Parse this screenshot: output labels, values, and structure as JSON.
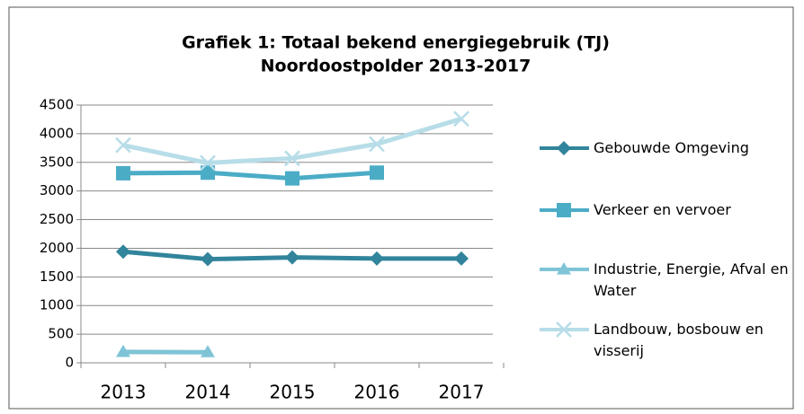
{
  "chart_data": {
    "type": "line",
    "title": [
      "Grafiek 1: Totaal bekend energiegebruik (TJ)",
      "Noordoostpolder 2013-2017"
    ],
    "categories": [
      "2013",
      "2014",
      "2015",
      "2016",
      "2017"
    ],
    "series": [
      {
        "name": "Gebouwde Omgeving",
        "color": "#31849b",
        "marker": "diamond",
        "values": [
          1940,
          1810,
          1840,
          1820,
          1820
        ]
      },
      {
        "name": "Verkeer en vervoer",
        "color": "#4bacc6",
        "marker": "square",
        "values": [
          3310,
          3320,
          3220,
          3320,
          null
        ]
      },
      {
        "name": "Industrie, Energie, Afval en Water",
        "color": "#7fc4d6",
        "marker": "triangle",
        "values": [
          190,
          185,
          null,
          null,
          null
        ]
      },
      {
        "name": "Landbouw, bosbouw en visserij",
        "color": "#b7dde8",
        "marker": "x",
        "values": [
          3800,
          3490,
          3570,
          3820,
          4260
        ]
      }
    ],
    "ylim": [
      0,
      4500
    ],
    "yticks": [
      0,
      500,
      1000,
      1500,
      2000,
      2500,
      3000,
      3500,
      4000,
      4500
    ],
    "grid": true,
    "legend": "right"
  }
}
